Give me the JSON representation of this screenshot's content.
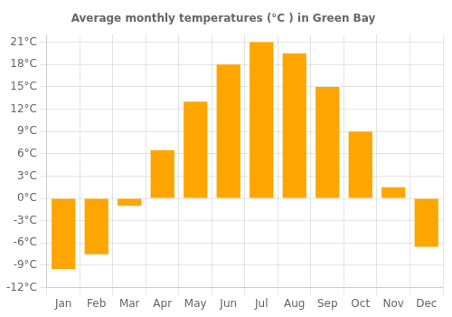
{
  "chart_data": {
    "type": "bar",
    "title": "Average monthly temperatures (°C ) in Green Bay",
    "categories": [
      "Jan",
      "Feb",
      "Mar",
      "Apr",
      "May",
      "Jun",
      "Jul",
      "Aug",
      "Sep",
      "Oct",
      "Nov",
      "Dec"
    ],
    "values": [
      -9.5,
      -7.5,
      -1.0,
      6.5,
      13.0,
      18.0,
      21.0,
      19.5,
      15.0,
      9.0,
      1.5,
      -6.5
    ],
    "color": "#FFA500",
    "ylim": [
      -12,
      22
    ],
    "yticks": [
      {
        "value": -12,
        "label": "-12°C"
      },
      {
        "value": -9,
        "label": "-9°C"
      },
      {
        "value": -6,
        "label": "-6°C"
      },
      {
        "value": -3,
        "label": "-3°C"
      },
      {
        "value": 0,
        "label": "0°C"
      },
      {
        "value": 3,
        "label": "3°C"
      },
      {
        "value": 6,
        "label": "6°C"
      },
      {
        "value": 9,
        "label": "9°C"
      },
      {
        "value": 12,
        "label": "12°C"
      },
      {
        "value": 15,
        "label": "15°C"
      },
      {
        "value": 18,
        "label": "18°C"
      },
      {
        "value": 21,
        "label": "21°C"
      }
    ],
    "grid": true
  }
}
